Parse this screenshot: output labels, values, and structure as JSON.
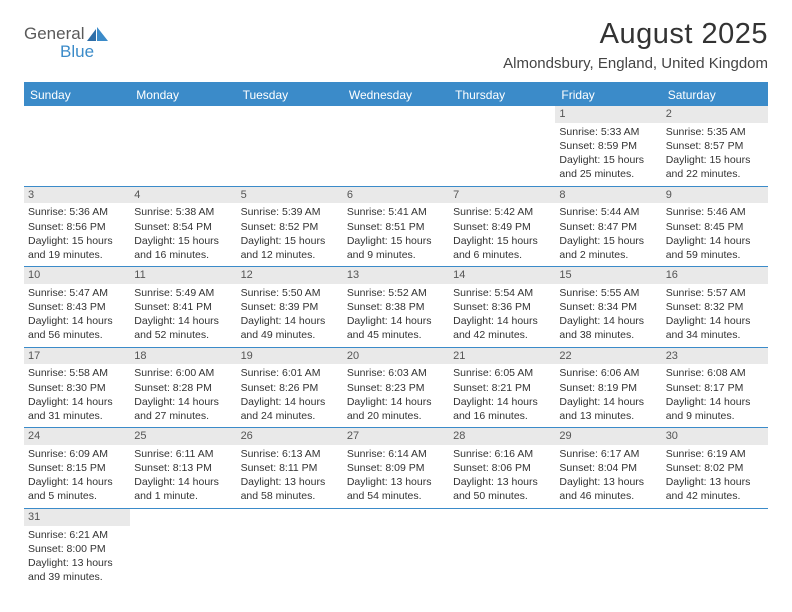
{
  "logo": {
    "word1": "General",
    "word2": "Blue"
  },
  "title": "August 2025",
  "location": "Almondsbury, England, United Kingdom",
  "colors": {
    "accent": "#3b8bc9",
    "dayBg": "#e9e9e9",
    "text": "#333333"
  },
  "dayHeaders": [
    "Sunday",
    "Monday",
    "Tuesday",
    "Wednesday",
    "Thursday",
    "Friday",
    "Saturday"
  ],
  "weeks": [
    [
      null,
      null,
      null,
      null,
      null,
      {
        "n": "1",
        "sr": "Sunrise: 5:33 AM",
        "ss": "Sunset: 8:59 PM",
        "d1": "Daylight: 15 hours",
        "d2": "and 25 minutes."
      },
      {
        "n": "2",
        "sr": "Sunrise: 5:35 AM",
        "ss": "Sunset: 8:57 PM",
        "d1": "Daylight: 15 hours",
        "d2": "and 22 minutes."
      }
    ],
    [
      {
        "n": "3",
        "sr": "Sunrise: 5:36 AM",
        "ss": "Sunset: 8:56 PM",
        "d1": "Daylight: 15 hours",
        "d2": "and 19 minutes."
      },
      {
        "n": "4",
        "sr": "Sunrise: 5:38 AM",
        "ss": "Sunset: 8:54 PM",
        "d1": "Daylight: 15 hours",
        "d2": "and 16 minutes."
      },
      {
        "n": "5",
        "sr": "Sunrise: 5:39 AM",
        "ss": "Sunset: 8:52 PM",
        "d1": "Daylight: 15 hours",
        "d2": "and 12 minutes."
      },
      {
        "n": "6",
        "sr": "Sunrise: 5:41 AM",
        "ss": "Sunset: 8:51 PM",
        "d1": "Daylight: 15 hours",
        "d2": "and 9 minutes."
      },
      {
        "n": "7",
        "sr": "Sunrise: 5:42 AM",
        "ss": "Sunset: 8:49 PM",
        "d1": "Daylight: 15 hours",
        "d2": "and 6 minutes."
      },
      {
        "n": "8",
        "sr": "Sunrise: 5:44 AM",
        "ss": "Sunset: 8:47 PM",
        "d1": "Daylight: 15 hours",
        "d2": "and 2 minutes."
      },
      {
        "n": "9",
        "sr": "Sunrise: 5:46 AM",
        "ss": "Sunset: 8:45 PM",
        "d1": "Daylight: 14 hours",
        "d2": "and 59 minutes."
      }
    ],
    [
      {
        "n": "10",
        "sr": "Sunrise: 5:47 AM",
        "ss": "Sunset: 8:43 PM",
        "d1": "Daylight: 14 hours",
        "d2": "and 56 minutes."
      },
      {
        "n": "11",
        "sr": "Sunrise: 5:49 AM",
        "ss": "Sunset: 8:41 PM",
        "d1": "Daylight: 14 hours",
        "d2": "and 52 minutes."
      },
      {
        "n": "12",
        "sr": "Sunrise: 5:50 AM",
        "ss": "Sunset: 8:39 PM",
        "d1": "Daylight: 14 hours",
        "d2": "and 49 minutes."
      },
      {
        "n": "13",
        "sr": "Sunrise: 5:52 AM",
        "ss": "Sunset: 8:38 PM",
        "d1": "Daylight: 14 hours",
        "d2": "and 45 minutes."
      },
      {
        "n": "14",
        "sr": "Sunrise: 5:54 AM",
        "ss": "Sunset: 8:36 PM",
        "d1": "Daylight: 14 hours",
        "d2": "and 42 minutes."
      },
      {
        "n": "15",
        "sr": "Sunrise: 5:55 AM",
        "ss": "Sunset: 8:34 PM",
        "d1": "Daylight: 14 hours",
        "d2": "and 38 minutes."
      },
      {
        "n": "16",
        "sr": "Sunrise: 5:57 AM",
        "ss": "Sunset: 8:32 PM",
        "d1": "Daylight: 14 hours",
        "d2": "and 34 minutes."
      }
    ],
    [
      {
        "n": "17",
        "sr": "Sunrise: 5:58 AM",
        "ss": "Sunset: 8:30 PM",
        "d1": "Daylight: 14 hours",
        "d2": "and 31 minutes."
      },
      {
        "n": "18",
        "sr": "Sunrise: 6:00 AM",
        "ss": "Sunset: 8:28 PM",
        "d1": "Daylight: 14 hours",
        "d2": "and 27 minutes."
      },
      {
        "n": "19",
        "sr": "Sunrise: 6:01 AM",
        "ss": "Sunset: 8:26 PM",
        "d1": "Daylight: 14 hours",
        "d2": "and 24 minutes."
      },
      {
        "n": "20",
        "sr": "Sunrise: 6:03 AM",
        "ss": "Sunset: 8:23 PM",
        "d1": "Daylight: 14 hours",
        "d2": "and 20 minutes."
      },
      {
        "n": "21",
        "sr": "Sunrise: 6:05 AM",
        "ss": "Sunset: 8:21 PM",
        "d1": "Daylight: 14 hours",
        "d2": "and 16 minutes."
      },
      {
        "n": "22",
        "sr": "Sunrise: 6:06 AM",
        "ss": "Sunset: 8:19 PM",
        "d1": "Daylight: 14 hours",
        "d2": "and 13 minutes."
      },
      {
        "n": "23",
        "sr": "Sunrise: 6:08 AM",
        "ss": "Sunset: 8:17 PM",
        "d1": "Daylight: 14 hours",
        "d2": "and 9 minutes."
      }
    ],
    [
      {
        "n": "24",
        "sr": "Sunrise: 6:09 AM",
        "ss": "Sunset: 8:15 PM",
        "d1": "Daylight: 14 hours",
        "d2": "and 5 minutes."
      },
      {
        "n": "25",
        "sr": "Sunrise: 6:11 AM",
        "ss": "Sunset: 8:13 PM",
        "d1": "Daylight: 14 hours",
        "d2": "and 1 minute."
      },
      {
        "n": "26",
        "sr": "Sunrise: 6:13 AM",
        "ss": "Sunset: 8:11 PM",
        "d1": "Daylight: 13 hours",
        "d2": "and 58 minutes."
      },
      {
        "n": "27",
        "sr": "Sunrise: 6:14 AM",
        "ss": "Sunset: 8:09 PM",
        "d1": "Daylight: 13 hours",
        "d2": "and 54 minutes."
      },
      {
        "n": "28",
        "sr": "Sunrise: 6:16 AM",
        "ss": "Sunset: 8:06 PM",
        "d1": "Daylight: 13 hours",
        "d2": "and 50 minutes."
      },
      {
        "n": "29",
        "sr": "Sunrise: 6:17 AM",
        "ss": "Sunset: 8:04 PM",
        "d1": "Daylight: 13 hours",
        "d2": "and 46 minutes."
      },
      {
        "n": "30",
        "sr": "Sunrise: 6:19 AM",
        "ss": "Sunset: 8:02 PM",
        "d1": "Daylight: 13 hours",
        "d2": "and 42 minutes."
      }
    ],
    [
      {
        "n": "31",
        "sr": "Sunrise: 6:21 AM",
        "ss": "Sunset: 8:00 PM",
        "d1": "Daylight: 13 hours",
        "d2": "and 39 minutes."
      },
      null,
      null,
      null,
      null,
      null,
      null
    ]
  ]
}
